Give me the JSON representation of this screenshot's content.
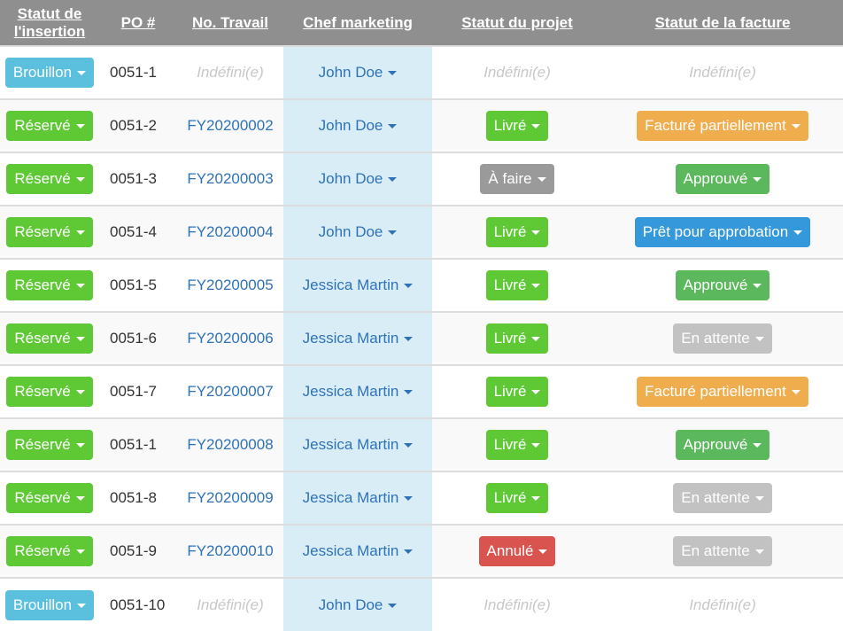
{
  "colors": {
    "Brouillon": "#5bc0de",
    "Réservé": "#5ec935",
    "Livré": "#5ec935",
    "À faire": "#9a9a9a",
    "Annulé": "#d9534f",
    "Facturé partiellement": "#f0ad4e",
    "Approuvé": "#5cb85c",
    "Prêt pour approbation": "#3498db",
    "En attente": "#c2c2c2"
  },
  "headers": [
    "Statut de l'insertion",
    "PO #",
    "No. Travail",
    "Chef marketing",
    "Statut du projet",
    "Statut de la facture"
  ],
  "undefined_label": "Indéfini(e)",
  "rows": [
    {
      "insertion": "Brouillon",
      "po": "0051-1",
      "job": null,
      "manager": "John Doe",
      "project": null,
      "invoice": null
    },
    {
      "insertion": "Réservé",
      "po": "0051-2",
      "job": "FY20200002",
      "manager": "John Doe",
      "project": "Livré",
      "invoice": "Facturé partiellement"
    },
    {
      "insertion": "Réservé",
      "po": "0051-3",
      "job": "FY20200003",
      "manager": "John Doe",
      "project": "À faire",
      "invoice": "Approuvé"
    },
    {
      "insertion": "Réservé",
      "po": "0051-4",
      "job": "FY20200004",
      "manager": "John Doe",
      "project": "Livré",
      "invoice": "Prêt pour approbation"
    },
    {
      "insertion": "Réservé",
      "po": "0051-5",
      "job": "FY20200005",
      "manager": "Jessica Martin",
      "project": "Livré",
      "invoice": "Approuvé"
    },
    {
      "insertion": "Réservé",
      "po": "0051-6",
      "job": "FY20200006",
      "manager": "Jessica Martin",
      "project": "Livré",
      "invoice": "En attente"
    },
    {
      "insertion": "Réservé",
      "po": "0051-7",
      "job": "FY20200007",
      "manager": "Jessica Martin",
      "project": "Livré",
      "invoice": "Facturé partiellement"
    },
    {
      "insertion": "Réservé",
      "po": "0051-1",
      "job": "FY20200008",
      "manager": "Jessica Martin",
      "project": "Livré",
      "invoice": "Approuvé"
    },
    {
      "insertion": "Réservé",
      "po": "0051-8",
      "job": "FY20200009",
      "manager": "Jessica Martin",
      "project": "Livré",
      "invoice": "En attente"
    },
    {
      "insertion": "Réservé",
      "po": "0051-9",
      "job": "FY20200010",
      "manager": "Jessica Martin",
      "project": "Annulé",
      "invoice": "En attente"
    },
    {
      "insertion": "Brouillon",
      "po": "0051-10",
      "job": null,
      "manager": "John Doe",
      "project": null,
      "invoice": null
    }
  ]
}
